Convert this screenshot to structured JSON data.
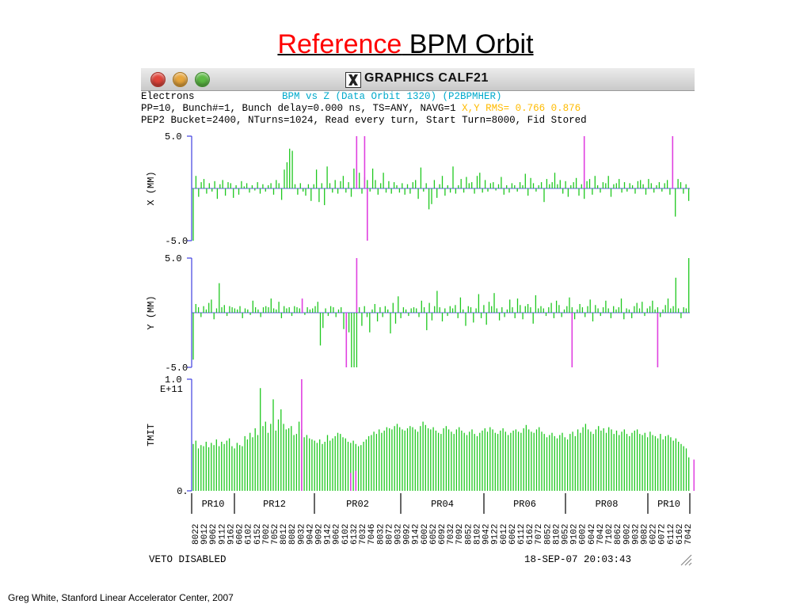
{
  "slide": {
    "title_red": "Reference",
    "title_black": " BPM Orbit",
    "credit": "Greg White, Stanford Linear Accelerator Center, 2007"
  },
  "window": {
    "title": "GRAPHICS CALF21",
    "header_line1": "Electrons",
    "plot_title": "BPM vs Z (Data Orbit 1320) (P2BPMHER)",
    "header_line2_prefix": "PP=10, Bunch#=1, Bunch delay=0.000 ns, TS=ANY, NAVG=1 ",
    "rms_text": "X,Y RMS= 0.766 0.876",
    "header_line3": "PEP2 Bucket=2400, NTurns=1024, Read every turn, Start Turn=8000, Fid Stored",
    "veto": "VETO DISABLED",
    "timestamp": "18-SEP-07 20:03:43"
  },
  "colors": {
    "bar_green": "#1ec81e",
    "highlight_magenta": "#e040e0",
    "zero_line_blue": "#5a5ae0",
    "axis_blue": "#4040e0",
    "title_red": "#ff0000",
    "plot_title_cyan": "#00aacc",
    "rms_yellow": "#ffbb00"
  },
  "chart_data": [
    {
      "type": "bar",
      "panel": "x",
      "ylabel": "X (MM)",
      "ylim": [
        -5.0,
        5.0
      ],
      "yticks": [
        "5.0",
        "-5.0"
      ],
      "highlight_color": "#e040e0",
      "values": [
        -5.0,
        1.2,
        -0.8,
        0.6,
        0.9,
        -0.5,
        0.5,
        -0.3,
        0.7,
        -1.0,
        0.4,
        0.8,
        -0.7,
        0.6,
        0.5,
        -0.9,
        0.3,
        -0.6,
        0.7,
        0.2,
        0.5,
        -0.4,
        0.3,
        -0.2,
        0.6,
        -0.5,
        0.4,
        -0.3,
        0.3,
        0.5,
        -0.6,
        0.8,
        0.5,
        -1.1,
        1.8,
        2.5,
        3.8,
        3.6,
        0.4,
        -0.6,
        0.5,
        -0.3,
        -0.7,
        0.4,
        -1.2,
        0.4,
        1.8,
        -1.3,
        0.5,
        -1.6,
        2.1,
        0.5,
        -0.4,
        0.8,
        -0.5,
        0.7,
        1.2,
        -0.4,
        0.6,
        -0.8,
        1.9,
        2.0,
        1.5,
        -0.5,
        1.1,
        0.8,
        -0.3,
        1.9,
        0.8,
        -0.6,
        0.5,
        1.5,
        -0.4,
        0.7,
        -0.5,
        0.6,
        0.3,
        -0.4,
        0.5,
        -0.6,
        0.4,
        -0.5,
        0.6,
        0.8,
        -1.0,
        2.0,
        -0.3,
        0.5,
        -2.0,
        -1.5,
        0.8,
        -0.9,
        0.4,
        1.2,
        -0.7,
        0.3,
        -0.4,
        2.1,
        -0.5,
        0.3,
        0.9,
        -0.4,
        1.1,
        0.5,
        0.6,
        -0.5,
        1.2,
        1.5,
        -0.4,
        0.8,
        -0.3,
        0.5,
        0.6,
        -0.2,
        0.4,
        1.1,
        -0.6,
        0.3,
        -0.4,
        0.5,
        0.3,
        -0.3,
        0.6,
        0.3,
        1.4,
        -0.7,
        1.0,
        0.5,
        -0.3,
        0.3,
        0.6,
        -1.3,
        0.9,
        0.4,
        0.6,
        1.5,
        0.4,
        0.8,
        -0.5,
        0.7,
        -0.8,
        0.3,
        0.6,
        1.0,
        -0.7,
        0.4,
        -1.0,
        0.7,
        0.9,
        -0.6,
        1.2,
        0.3,
        -0.4,
        0.6,
        0.5,
        1.2,
        -0.8,
        0.4,
        0.5,
        0.9,
        -0.4,
        0.6,
        -0.3,
        0.5,
        0.3,
        -0.5,
        0.7,
        0.8,
        0.4,
        -0.6,
        0.9,
        0.5,
        -0.4,
        0.3,
        0.6,
        -0.3,
        0.5,
        0.8,
        -0.6,
        0.3,
        -2.7,
        0.9,
        0.6,
        -0.5,
        0.4,
        -1.2
      ],
      "highlights": [
        {
          "index": 61,
          "value": 5.0
        },
        {
          "index": 64,
          "value": 5.0
        },
        {
          "index": 65,
          "value": -5.0
        },
        {
          "index": 146,
          "value": 5.0
        },
        {
          "index": 179,
          "value": 5.0
        },
        {
          "index": 194,
          "value": -5.0
        },
        {
          "index": 196,
          "value": -5.0
        }
      ]
    },
    {
      "type": "bar",
      "panel": "y",
      "ylabel": "Y (MM)",
      "ylim": [
        -5.0,
        5.0
      ],
      "yticks": [
        "5.0",
        "-5.0"
      ],
      "highlight_color": "#e040e0",
      "values": [
        -4.3,
        0.8,
        0.5,
        -0.4,
        0.6,
        0.3,
        0.9,
        1.2,
        -0.6,
        0.4,
        2.7,
        0.5,
        0.7,
        -0.3,
        0.6,
        0.5,
        0.4,
        0.3,
        0.6,
        -0.5,
        0.4,
        0.3,
        -0.2,
        1.1,
        0.5,
        0.3,
        -0.4,
        0.5,
        0.6,
        0.5,
        1.3,
        0.4,
        0.3,
        1.0,
        -0.5,
        0.6,
        0.4,
        0.5,
        -0.3,
        0.6,
        0.5,
        0.4,
        0.3,
        -0.2,
        0.5,
        0.3,
        0.4,
        0.6,
        1.0,
        -3.0,
        -1.4,
        0.4,
        -0.3,
        0.6,
        0.5,
        -0.4,
        0.3,
        0.5,
        -1.5,
        -2.0,
        -1.8,
        -5.0,
        -5.0,
        -5.0,
        0.5,
        -1.2,
        0.6,
        -0.4,
        -1.8,
        0.3,
        0.8,
        -0.8,
        0.5,
        -0.4,
        0.6,
        0.3,
        -1.9,
        0.9,
        -1.0,
        1.5,
        -0.5,
        0.5,
        0.3,
        -0.3,
        0.4,
        0.5,
        0.4,
        -0.4,
        1.1,
        0.5,
        -1.6,
        0.9,
        -0.7,
        0.6,
        2.0,
        0.5,
        -0.8,
        0.4,
        -0.3,
        0.6,
        0.4,
        0.7,
        -0.5,
        1.4,
        0.3,
        -1.2,
        0.6,
        0.5,
        -0.9,
        0.4,
        1.7,
        -0.5,
        0.7,
        -1.1,
        1.0,
        0.6,
        1.8,
        0.4,
        -0.7,
        0.5,
        -0.4,
        0.3,
        1.2,
        0.5,
        -0.5,
        1.3,
        0.7,
        -0.6,
        0.6,
        0.8,
        0.5,
        -1.0,
        1.6,
        0.4,
        0.6,
        0.4,
        -0.3,
        0.5,
        0.9,
        -0.5,
        1.1,
        0.7,
        -0.4,
        0.3,
        0.6,
        1.4,
        0.5,
        -0.6,
        0.3,
        0.8,
        0.5,
        -0.4,
        0.6,
        1.2,
        -0.8,
        0.7,
        0.4,
        -0.3,
        0.5,
        1.1,
        0.4,
        -0.5,
        0.6,
        0.3,
        0.5,
        1.3,
        -0.6,
        0.4,
        0.3,
        -0.5,
        0.6,
        0.9,
        0.4,
        1.0,
        -0.3,
        0.4,
        0.6,
        1.1,
        0.3,
        0.5,
        -0.4,
        0.3,
        0.7,
        1.3,
        0.4,
        0.6,
        3.2,
        0.4,
        -0.5,
        0.5,
        0.4,
        5.0
      ],
      "highlights": [
        {
          "index": 42,
          "value": 1.3
        },
        {
          "index": 59,
          "value": -5.0
        },
        {
          "index": 63,
          "value": 5.0
        },
        {
          "index": 146,
          "value": -5.0
        },
        {
          "index": 179,
          "value": -5.0
        },
        {
          "index": 194,
          "value": 5.0
        }
      ]
    },
    {
      "type": "bar",
      "panel": "tmit",
      "ylabel": "TMIT",
      "ylim": [
        0,
        1.0
      ],
      "yticks": [
        "1.0",
        "0."
      ],
      "ytick_note": "E+11",
      "highlight_color": "#e040e0",
      "values": [
        0.42,
        0.45,
        0.38,
        0.41,
        0.4,
        0.44,
        0.39,
        0.43,
        0.41,
        0.46,
        0.4,
        0.44,
        0.42,
        0.45,
        0.47,
        0.4,
        0.38,
        0.43,
        0.41,
        0.4,
        0.49,
        0.46,
        0.52,
        0.48,
        0.56,
        0.5,
        0.92,
        0.58,
        0.62,
        0.52,
        0.6,
        0.82,
        0.54,
        0.64,
        0.73,
        0.6,
        0.55,
        0.56,
        0.58,
        0.5,
        0.51,
        0.62,
        0.55,
        0.48,
        0.5,
        0.47,
        0.46,
        0.45,
        0.43,
        0.46,
        0.42,
        0.44,
        0.5,
        0.45,
        0.47,
        0.49,
        0.52,
        0.51,
        0.48,
        0.47,
        0.44,
        0.43,
        0.45,
        0.42,
        0.4,
        0.41,
        0.44,
        0.46,
        0.49,
        0.5,
        0.53,
        0.51,
        0.55,
        0.52,
        0.54,
        0.57,
        0.56,
        0.55,
        0.58,
        0.6,
        0.57,
        0.55,
        0.54,
        0.56,
        0.58,
        0.57,
        0.55,
        0.53,
        0.58,
        0.62,
        0.59,
        0.56,
        0.55,
        0.57,
        0.54,
        0.52,
        0.51,
        0.56,
        0.58,
        0.55,
        0.53,
        0.51,
        0.55,
        0.57,
        0.54,
        0.52,
        0.5,
        0.53,
        0.55,
        0.51,
        0.49,
        0.52,
        0.54,
        0.56,
        0.53,
        0.57,
        0.55,
        0.52,
        0.51,
        0.54,
        0.56,
        0.53,
        0.5,
        0.52,
        0.54,
        0.55,
        0.53,
        0.52,
        0.56,
        0.59,
        0.55,
        0.53,
        0.52,
        0.55,
        0.57,
        0.53,
        0.51,
        0.48,
        0.5,
        0.52,
        0.49,
        0.47,
        0.5,
        0.52,
        0.48,
        0.46,
        0.51,
        0.53,
        0.49,
        0.55,
        0.52,
        0.57,
        0.6,
        0.55,
        0.53,
        0.51,
        0.55,
        0.58,
        0.54,
        0.56,
        0.52,
        0.57,
        0.55,
        0.51,
        0.54,
        0.5,
        0.53,
        0.55,
        0.51,
        0.49,
        0.52,
        0.54,
        0.55,
        0.51,
        0.5,
        0.52,
        0.48,
        0.53,
        0.5,
        0.49,
        0.47,
        0.51,
        0.46,
        0.49,
        0.5,
        0.48,
        0.45,
        0.47,
        0.44,
        0.42,
        0.4,
        0.38,
        0.3
      ],
      "highlights": [
        {
          "index": 42,
          "value": 1.0
        },
        {
          "index": 61,
          "value": 0.16
        },
        {
          "index": 63,
          "value": 0.18
        },
        {
          "index": 194,
          "value": 0.28
        }
      ]
    }
  ],
  "regions": [
    "PR10",
    "PR12",
    "PR02",
    "PR04",
    "PR06",
    "PR08",
    "PR10"
  ],
  "bpm_labels": [
    "8022",
    "9012",
    "9062",
    "9112",
    "9162",
    "6062",
    "6102",
    "6152",
    "7002",
    "7052",
    "8012",
    "8082",
    "9032",
    "9042",
    "9092",
    "9142",
    "9062",
    "6102",
    "6132",
    "7032",
    "7046",
    "8032",
    "8072",
    "9032",
    "9092",
    "9142",
    "6002",
    "6052",
    "6092",
    "7032",
    "7092",
    "8052",
    "8102",
    "9042",
    "9122",
    "6012",
    "6062",
    "6112",
    "6162",
    "7072",
    "8052",
    "8102",
    "9052",
    "9102",
    "6002",
    "6042",
    "7042",
    "7102",
    "8062",
    "9002",
    "9032",
    "9082",
    "6022",
    "6072",
    "6112",
    "6162",
    "7042"
  ]
}
